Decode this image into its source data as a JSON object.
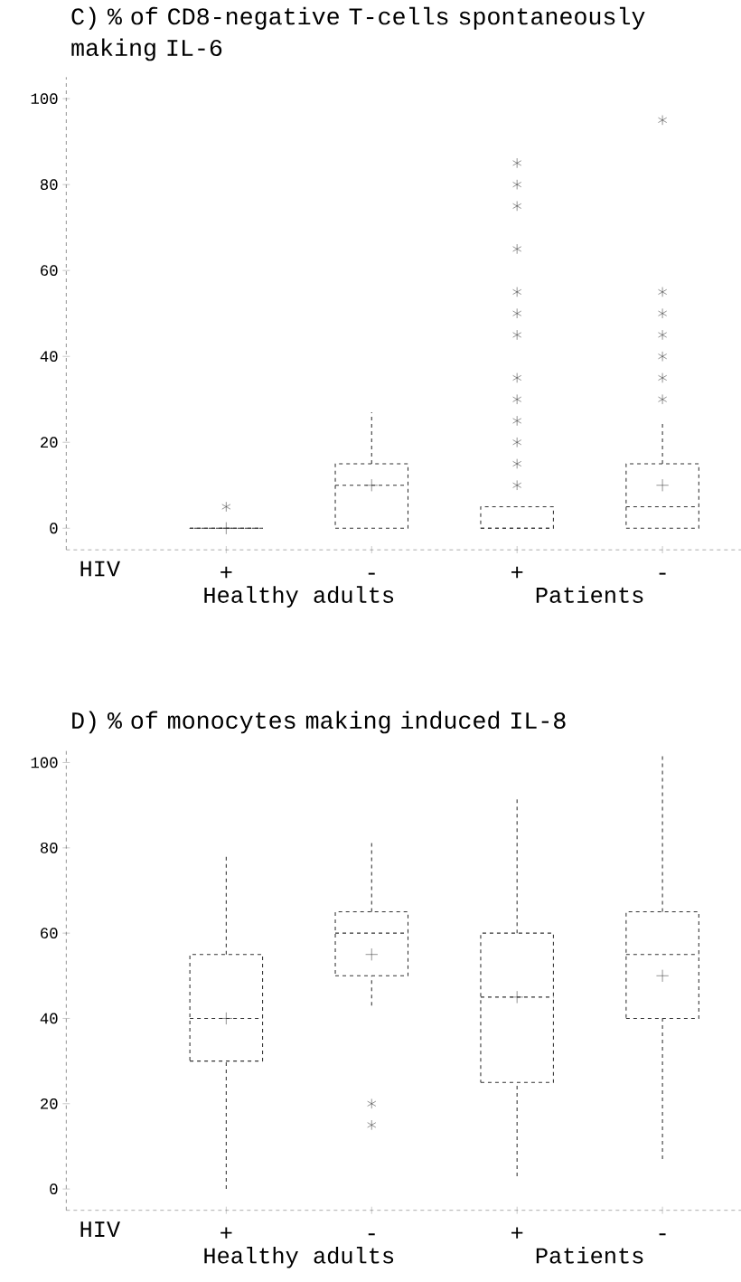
{
  "chart_data": [
    {
      "type": "box",
      "title": "C) % of CD8-negative T-cells spontaneously making IL-6",
      "xlabel": "HIV",
      "categories": [
        "+",
        "-",
        "+",
        "-"
      ],
      "annotations": [
        "Healthy adults",
        "Patients"
      ],
      "color": "#333333",
      "line_style": "dashed",
      "marker": "star",
      "ylim": [
        -5,
        105
      ],
      "yticks": [
        0,
        20,
        40,
        60,
        80,
        100
      ],
      "boxes": [
        {
          "low": 0,
          "q1": 0,
          "median": 0,
          "q3": 0,
          "high": 0,
          "mean": 0,
          "outliers": [
            5
          ]
        },
        {
          "low": 0,
          "q1": 0,
          "median": 10,
          "q3": 15,
          "high": 27,
          "mean": 10
        },
        {
          "low": 0,
          "q1": 0,
          "median": 0,
          "q3": 5,
          "high": 5,
          "outliers": [
            10,
            15,
            20,
            25,
            30,
            35,
            45,
            50,
            55,
            65,
            75,
            80,
            85
          ]
        },
        {
          "low": 0,
          "q1": 0,
          "median": 5,
          "q3": 15,
          "high": 25,
          "mean": 10,
          "outliers": [
            30,
            35,
            40,
            45,
            50,
            55,
            95
          ]
        }
      ]
    },
    {
      "type": "box",
      "title": "D) % of monocytes making induced IL-8",
      "xlabel": "HIV",
      "categories": [
        "+",
        "-",
        "+",
        "-"
      ],
      "annotations": [
        "Healthy adults",
        "Patients"
      ],
      "color": "#333333",
      "line_style": "dashed",
      "marker": "star",
      "ylim": [
        -5,
        103
      ],
      "yticks": [
        0,
        20,
        40,
        60,
        80,
        100
      ],
      "boxes": [
        {
          "low": 0,
          "q1": 30,
          "median": 40,
          "q3": 55,
          "high": 78,
          "mean": 40
        },
        {
          "low": 43,
          "q1": 50,
          "median": 60,
          "q3": 65,
          "high": 82,
          "mean": 55,
          "outliers": [
            15,
            20
          ]
        },
        {
          "low": 3,
          "q1": 25,
          "median": 45,
          "q3": 60,
          "high": 92,
          "mean": 45
        },
        {
          "low": 7,
          "q1": 40,
          "median": 55,
          "q3": 65,
          "high": 102,
          "mean": 50
        }
      ]
    }
  ]
}
